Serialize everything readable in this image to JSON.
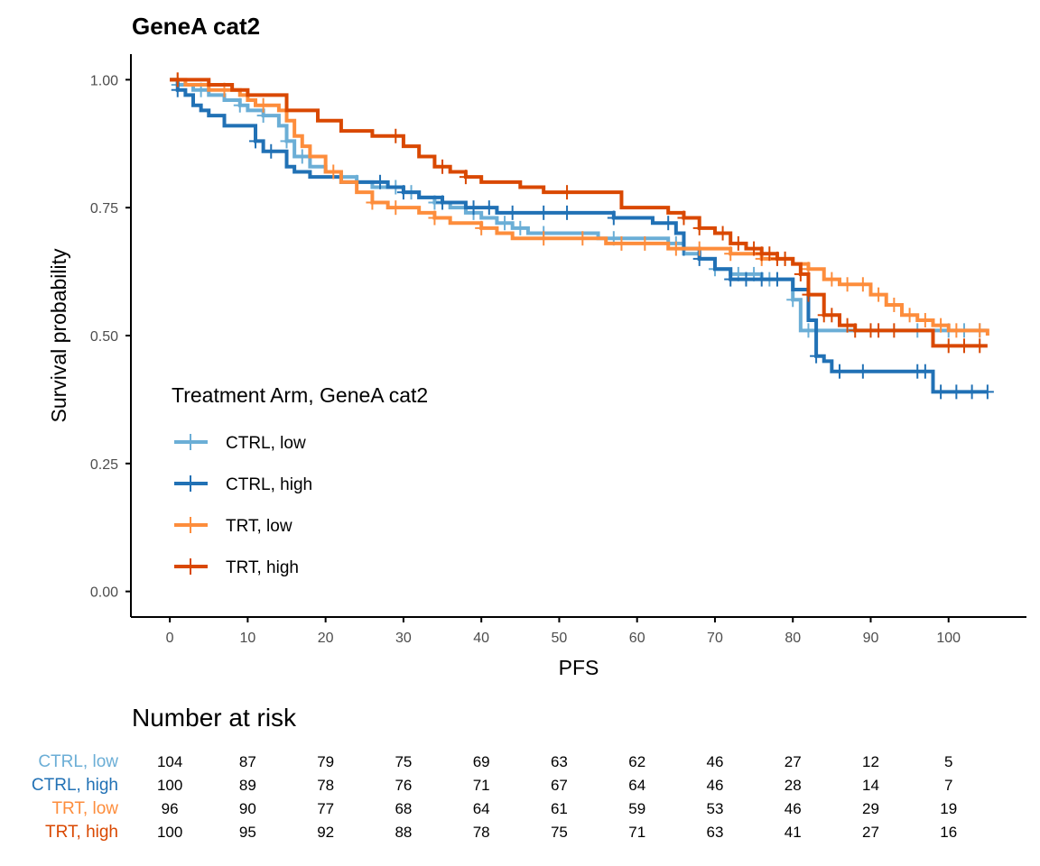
{
  "chart_data": {
    "type": "line",
    "title": "GeneA cat2",
    "xlabel": "PFS",
    "ylabel": "Survival probability",
    "xlim": [
      -5,
      110
    ],
    "ylim": [
      -0.05,
      1.05
    ],
    "x_ticks": [
      0,
      10,
      20,
      30,
      40,
      50,
      60,
      70,
      80,
      90,
      100
    ],
    "y_ticks": [
      0,
      0.25,
      0.5,
      0.75,
      1
    ],
    "x_tick_labels": [
      "0",
      "10",
      "20",
      "30",
      "40",
      "50",
      "60",
      "70",
      "80",
      "90",
      "100"
    ],
    "y_tick_labels": [
      "0.00",
      "0.25",
      "0.50",
      "0.75",
      "1.00"
    ],
    "grid": false,
    "step": true,
    "legend": {
      "title": "Treatment Arm, GeneA cat2",
      "position": "left-center inside plot"
    },
    "series": [
      {
        "name": "CTRL, low",
        "color": "#6baed6",
        "x": [
          0,
          1,
          3,
          5,
          7,
          9,
          10,
          12,
          14,
          15,
          16,
          18,
          20,
          22,
          24,
          26,
          28,
          30,
          32,
          34,
          36,
          38,
          40,
          42,
          44,
          46,
          50,
          55,
          60,
          64,
          66,
          68,
          70,
          72,
          76,
          78,
          80,
          81,
          83,
          85,
          100,
          103,
          105
        ],
        "y": [
          1.0,
          0.99,
          0.98,
          0.97,
          0.96,
          0.95,
          0.94,
          0.93,
          0.91,
          0.88,
          0.85,
          0.83,
          0.82,
          0.81,
          0.8,
          0.79,
          0.79,
          0.78,
          0.77,
          0.76,
          0.75,
          0.74,
          0.73,
          0.72,
          0.71,
          0.7,
          0.7,
          0.69,
          0.69,
          0.68,
          0.66,
          0.65,
          0.63,
          0.62,
          0.61,
          0.61,
          0.57,
          0.51,
          0.51,
          0.51,
          0.51,
          0.51,
          0.51
        ],
        "censor_x": [
          1,
          4,
          9,
          12,
          15,
          17,
          24,
          29,
          31,
          34,
          39,
          43,
          45,
          48,
          57,
          65,
          70,
          73,
          75,
          77,
          80,
          82,
          96,
          100,
          102,
          104
        ]
      },
      {
        "name": "CTRL, high",
        "color": "#2171b5",
        "x": [
          0,
          1,
          2,
          3,
          4,
          5,
          7,
          10,
          11,
          12,
          13,
          15,
          16,
          18,
          20,
          22,
          24,
          26,
          28,
          30,
          32,
          35,
          38,
          42,
          55,
          57,
          62,
          65,
          66,
          68,
          70,
          72,
          75,
          78,
          80,
          82,
          83,
          84,
          85,
          98,
          105
        ],
        "y": [
          1.0,
          0.98,
          0.97,
          0.95,
          0.94,
          0.93,
          0.91,
          0.91,
          0.88,
          0.86,
          0.86,
          0.83,
          0.82,
          0.81,
          0.81,
          0.8,
          0.8,
          0.8,
          0.79,
          0.78,
          0.77,
          0.76,
          0.75,
          0.74,
          0.74,
          0.73,
          0.72,
          0.7,
          0.67,
          0.65,
          0.63,
          0.61,
          0.61,
          0.61,
          0.59,
          0.53,
          0.46,
          0.45,
          0.43,
          0.39,
          0.39
        ],
        "censor_x": [
          1,
          11,
          13,
          27,
          30,
          35,
          39,
          41,
          44,
          48,
          51,
          57,
          64,
          66,
          68,
          72,
          74,
          76,
          78,
          83,
          86,
          89,
          96,
          97,
          99,
          101,
          103,
          105
        ]
      },
      {
        "name": "TRT, low",
        "color": "#fd8d3c",
        "x": [
          0,
          2,
          5,
          7,
          9,
          10,
          11,
          13,
          14,
          15,
          16,
          17,
          18,
          20,
          22,
          24,
          26,
          28,
          30,
          32,
          34,
          36,
          40,
          42,
          44,
          48,
          52,
          56,
          60,
          64,
          66,
          68,
          70,
          72,
          74,
          76,
          78,
          80,
          82,
          84,
          86,
          88,
          90,
          92,
          94,
          96,
          98,
          100,
          105
        ],
        "y": [
          1.0,
          0.99,
          0.98,
          0.98,
          0.97,
          0.96,
          0.95,
          0.95,
          0.94,
          0.92,
          0.89,
          0.87,
          0.85,
          0.82,
          0.8,
          0.78,
          0.76,
          0.75,
          0.75,
          0.74,
          0.73,
          0.72,
          0.71,
          0.7,
          0.69,
          0.69,
          0.69,
          0.68,
          0.68,
          0.67,
          0.67,
          0.67,
          0.67,
          0.66,
          0.66,
          0.65,
          0.65,
          0.64,
          0.63,
          0.61,
          0.6,
          0.6,
          0.58,
          0.56,
          0.54,
          0.53,
          0.52,
          0.51,
          0.5
        ],
        "censor_x": [
          1,
          7,
          12,
          21,
          26,
          29,
          34,
          40,
          48,
          53,
          58,
          61,
          65,
          68,
          72,
          76,
          79,
          82,
          85,
          87,
          89,
          91,
          93,
          95,
          97,
          99,
          101,
          104
        ]
      },
      {
        "name": "TRT, high",
        "color": "#d94801",
        "x": [
          0,
          5,
          8,
          10,
          15,
          19,
          22,
          26,
          30,
          32,
          34,
          36,
          38,
          40,
          45,
          48,
          58,
          64,
          66,
          68,
          70,
          72,
          74,
          76,
          78,
          80,
          81,
          82,
          84,
          86,
          88,
          92,
          95,
          98,
          105
        ],
        "y": [
          1.0,
          0.99,
          0.98,
          0.97,
          0.94,
          0.92,
          0.9,
          0.89,
          0.87,
          0.85,
          0.83,
          0.82,
          0.81,
          0.8,
          0.79,
          0.78,
          0.75,
          0.74,
          0.73,
          0.71,
          0.7,
          0.68,
          0.67,
          0.66,
          0.65,
          0.64,
          0.62,
          0.58,
          0.54,
          0.52,
          0.51,
          0.51,
          0.51,
          0.48,
          0.48
        ],
        "censor_x": [
          1,
          29,
          35,
          38,
          51,
          66,
          68,
          71,
          73,
          75,
          76,
          77,
          78,
          79,
          81,
          82,
          84,
          85,
          87,
          88,
          90,
          91,
          93,
          100,
          102,
          104
        ]
      }
    ],
    "risk_table": {
      "title": "Number at risk",
      "times": [
        0,
        10,
        20,
        30,
        40,
        50,
        60,
        70,
        80,
        90,
        100
      ],
      "rows": [
        {
          "label": "CTRL, low",
          "color": "#6baed6",
          "values": [
            "104",
            "87",
            "79",
            "75",
            "69",
            "63",
            "62",
            "46",
            "27",
            "12",
            "5"
          ]
        },
        {
          "label": "CTRL, high",
          "color": "#2171b5",
          "values": [
            "100",
            "89",
            "78",
            "76",
            "71",
            "67",
            "64",
            "46",
            "28",
            "14",
            "7"
          ]
        },
        {
          "label": "TRT, low",
          "color": "#fd8d3c",
          "values": [
            "96",
            "90",
            "77",
            "68",
            "64",
            "61",
            "59",
            "53",
            "46",
            "29",
            "19"
          ]
        },
        {
          "label": "TRT, high",
          "color": "#d94801",
          "values": [
            "100",
            "95",
            "92",
            "88",
            "78",
            "75",
            "71",
            "63",
            "41",
            "27",
            "16"
          ]
        }
      ]
    }
  }
}
